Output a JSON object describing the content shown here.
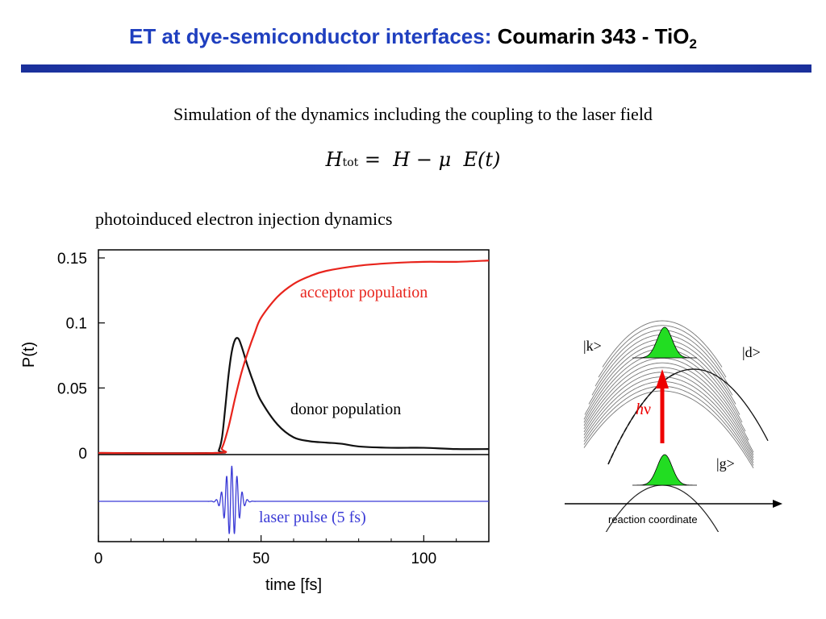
{
  "title": {
    "part1": "ET at dye-semiconductor interfaces:",
    "part2": "Coumarin 343 - TiO",
    "sub": "2"
  },
  "subtitle": "Simulation of the dynamics including the coupling to the laser field",
  "equation": {
    "H": "H",
    "tot": "tot",
    "rest": "=  H − μ  E(t)"
  },
  "section_label": "photoinduced electron injection dynamics",
  "plot": {
    "acceptor_label": "acceptor population",
    "donor_label": "donor population",
    "laser_label": "laser pulse (5 fs)",
    "colors": {
      "acceptor": "#e8241c",
      "donor": "#111111",
      "laser": "#3b3bd6"
    }
  },
  "diagram": {
    "k_label": "|k>",
    "d_label": "|d>",
    "g_label": "|g>",
    "hv_h": "h",
    "hv_v": "ν",
    "axis_label": "reaction coordinate",
    "colors": {
      "wavepacket": "#22dd22",
      "arrow": "#ee0000"
    }
  },
  "chart_data": [
    {
      "type": "line",
      "title": "",
      "xlabel": "time [fs]",
      "ylabel": "P(t)",
      "xlim": [
        0,
        120
      ],
      "ylim": [
        0,
        0.15
      ],
      "xticks": [
        "0",
        "50",
        "100"
      ],
      "yticks": [
        "0",
        "0.05",
        "0.1",
        "0.15"
      ],
      "grid": false,
      "series": [
        {
          "name": "acceptor population",
          "x": [
            0,
            36,
            38,
            40,
            42,
            44,
            46,
            48,
            50,
            55,
            60,
            65,
            70,
            80,
            90,
            100,
            110,
            120
          ],
          "y": [
            0,
            0,
            0.004,
            0.02,
            0.042,
            0.062,
            0.078,
            0.092,
            0.104,
            0.12,
            0.13,
            0.136,
            0.14,
            0.144,
            0.146,
            0.147,
            0.147,
            0.148
          ]
        },
        {
          "name": "donor population",
          "x": [
            0,
            36,
            37,
            38,
            39,
            40,
            41,
            42,
            43,
            44,
            46,
            48,
            50,
            55,
            60,
            65,
            70,
            75,
            80,
            90,
            100,
            110,
            120
          ],
          "y": [
            0,
            0,
            0.002,
            0.012,
            0.035,
            0.06,
            0.078,
            0.087,
            0.088,
            0.082,
            0.066,
            0.052,
            0.04,
            0.022,
            0.012,
            0.009,
            0.008,
            0.007,
            0.005,
            0.004,
            0.004,
            0.003,
            0.003
          ]
        },
        {
          "name": "laser pulse (5 fs)",
          "pulse_center_fs": 41,
          "pulse_width_fs": 5,
          "period_fs": 1.6
        }
      ]
    }
  ]
}
